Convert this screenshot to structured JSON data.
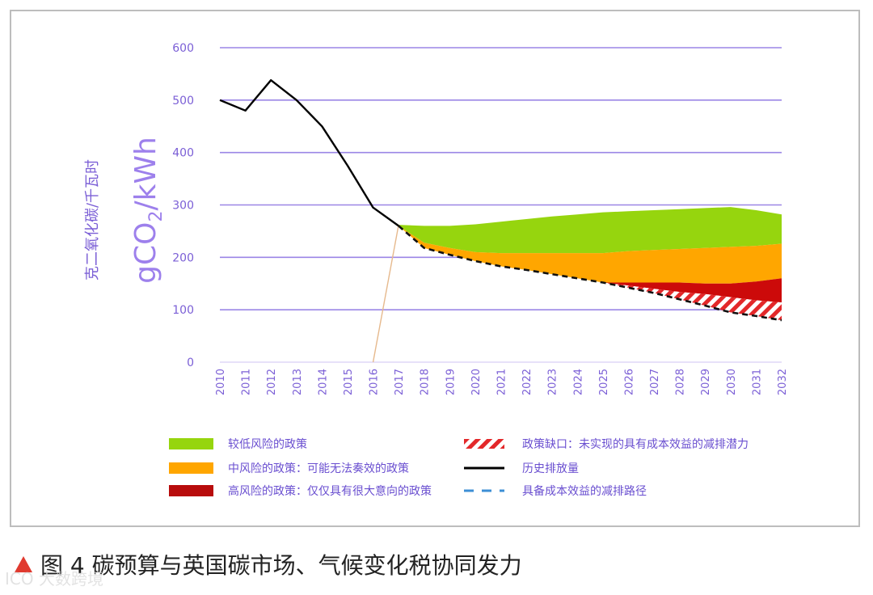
{
  "chart_data": {
    "type": "area",
    "ylabel": "gCO2/kWh",
    "ylabel_sub": "克二氧化碳/千瓦时",
    "ylim": [
      0,
      600
    ],
    "yticks": [
      0,
      100,
      200,
      300,
      400,
      500,
      600
    ],
    "grid": true,
    "x": [
      2010,
      2011,
      2012,
      2013,
      2014,
      2015,
      2016,
      2017,
      2018,
      2019,
      2020,
      2021,
      2022,
      2023,
      2024,
      2025,
      2026,
      2027,
      2028,
      2029,
      2030,
      2031,
      2032
    ],
    "series": [
      {
        "name": "历史排放量",
        "kind": "line",
        "color": "#000000",
        "x": [
          2010,
          2011,
          2012,
          2013,
          2014,
          2015,
          2016,
          2017
        ],
        "values": [
          500,
          480,
          538,
          500,
          450,
          375,
          295,
          260
        ]
      },
      {
        "name": "具备成本效益的减排路径",
        "kind": "dashed",
        "color": "#3d8fd6",
        "x": [
          2017,
          2018,
          2019,
          2020,
          2021,
          2022,
          2023,
          2024,
          2025,
          2026,
          2027,
          2028,
          2029,
          2030,
          2031,
          2032
        ],
        "values": [
          260,
          218,
          205,
          193,
          183,
          176,
          168,
          160,
          152,
          142,
          132,
          120,
          108,
          95,
          88,
          80
        ]
      },
      {
        "name": "较低风险的政策",
        "kind": "band",
        "color": "#96d50e",
        "x": [
          2017,
          2018,
          2019,
          2020,
          2021,
          2022,
          2023,
          2024,
          2025,
          2026,
          2027,
          2028,
          2029,
          2030,
          2031,
          2032
        ],
        "upper": [
          262,
          260,
          260,
          263,
          268,
          273,
          278,
          282,
          286,
          288,
          290,
          292,
          294,
          296,
          290,
          282
        ],
        "lower": [
          260,
          228,
          218,
          210,
          208,
          208,
          208,
          208,
          208,
          212,
          214,
          216,
          218,
          220,
          222,
          226
        ]
      },
      {
        "name": "中风险的政策：可能无法奏效的政策",
        "kind": "band",
        "color": "#ffa600",
        "x": [
          2017,
          2018,
          2019,
          2020,
          2021,
          2022,
          2023,
          2024,
          2025,
          2026,
          2027,
          2028,
          2029,
          2030,
          2031,
          2032
        ],
        "upper": [
          260,
          228,
          218,
          210,
          208,
          208,
          208,
          208,
          208,
          212,
          214,
          216,
          218,
          220,
          222,
          226
        ],
        "lower": [
          260,
          218,
          205,
          193,
          183,
          176,
          168,
          160,
          152,
          152,
          152,
          152,
          150,
          150,
          154,
          160
        ]
      },
      {
        "name": "高风险的政策：仅仅具有很大意向的政策",
        "kind": "band",
        "color": "#cc0a0a",
        "x": [
          2025,
          2026,
          2027,
          2028,
          2029,
          2030,
          2031,
          2032
        ],
        "upper": [
          152,
          152,
          152,
          152,
          150,
          150,
          154,
          160
        ],
        "lower": [
          152,
          146,
          140,
          134,
          130,
          124,
          118,
          114
        ]
      },
      {
        "name": "政策缺口：未实现的具有成本效益的减排潜力",
        "kind": "hatch",
        "color": "#e3282a",
        "x": [
          2025,
          2026,
          2027,
          2028,
          2029,
          2030,
          2031,
          2032
        ],
        "upper": [
          152,
          146,
          140,
          134,
          130,
          124,
          118,
          114
        ],
        "lower": [
          152,
          142,
          132,
          120,
          108,
          95,
          88,
          80
        ]
      }
    ],
    "connector": {
      "from": [
        2016,
        0
      ],
      "to": [
        2017,
        262
      ],
      "color": "#e6b98d"
    },
    "legend": [
      {
        "label": "较低风险的政策",
        "symbol": "box",
        "color": "#96d50e"
      },
      {
        "label": "中风险的政策：可能无法奏效的政策",
        "symbol": "box",
        "color": "#ffa600"
      },
      {
        "label": "高风险的政策：仅仅具有很大意向的政策",
        "symbol": "box",
        "color": "#b80c0c"
      },
      {
        "label": "政策缺口：未实现的具有成本效益的减排潜力",
        "symbol": "hatch",
        "color": "#e3282a"
      },
      {
        "label": "历史排放量",
        "symbol": "line",
        "color": "#000000"
      },
      {
        "label": "具备成本效益的减排路径",
        "symbol": "dash",
        "color": "#3d8fd6"
      }
    ]
  },
  "caption": {
    "text": "图 4  碳预算与英国碳市场、气候变化税协同发力"
  },
  "watermark": {
    "text": "ICO 大数跨境"
  }
}
